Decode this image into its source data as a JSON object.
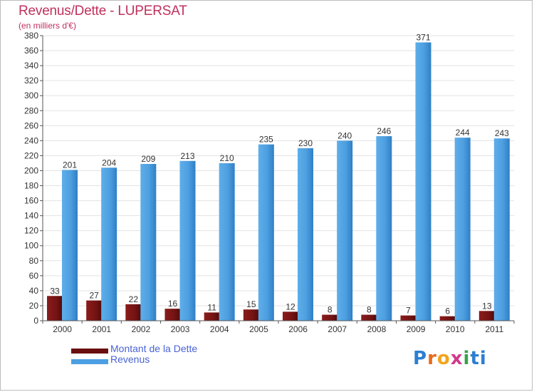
{
  "header": {
    "title": "Revenus/Dette - LUPERSAT",
    "subtitle": "(en milliers d'€)"
  },
  "brand": {
    "chars": [
      "P",
      "r",
      "o",
      "x",
      "i",
      "t",
      "i"
    ],
    "colors": [
      "#2b7fd1",
      "#e96a1a",
      "#f2a41c",
      "#d23a8a",
      "#3aa14b",
      "#2b7fd1",
      "#2b7fd1"
    ]
  },
  "colors": {
    "dette": "#7a1414",
    "revenus": "#4d9fe3",
    "grid": "#e3e3e3",
    "axis": "#555555"
  },
  "chart_data": {
    "type": "bar",
    "title": "Revenus/Dette - LUPERSAT",
    "subtitle": "(en milliers d'€)",
    "categories": [
      "2000",
      "2001",
      "2002",
      "2003",
      "2004",
      "2005",
      "2006",
      "2007",
      "2008",
      "2009",
      "2010",
      "2011"
    ],
    "series": [
      {
        "name": "Montant de la Dette",
        "values": [
          33,
          27,
          22,
          16,
          11,
          15,
          12,
          8,
          8,
          7,
          6,
          13
        ]
      },
      {
        "name": "Revenus",
        "values": [
          201,
          204,
          209,
          213,
          210,
          235,
          230,
          240,
          246,
          371,
          244,
          243
        ]
      }
    ],
    "ylim": [
      0,
      380
    ],
    "yticks": [
      0,
      20,
      40,
      60,
      80,
      100,
      120,
      140,
      160,
      180,
      200,
      220,
      240,
      260,
      280,
      300,
      320,
      340,
      360,
      380
    ],
    "grid": true,
    "legend_position": "bottom-left"
  }
}
